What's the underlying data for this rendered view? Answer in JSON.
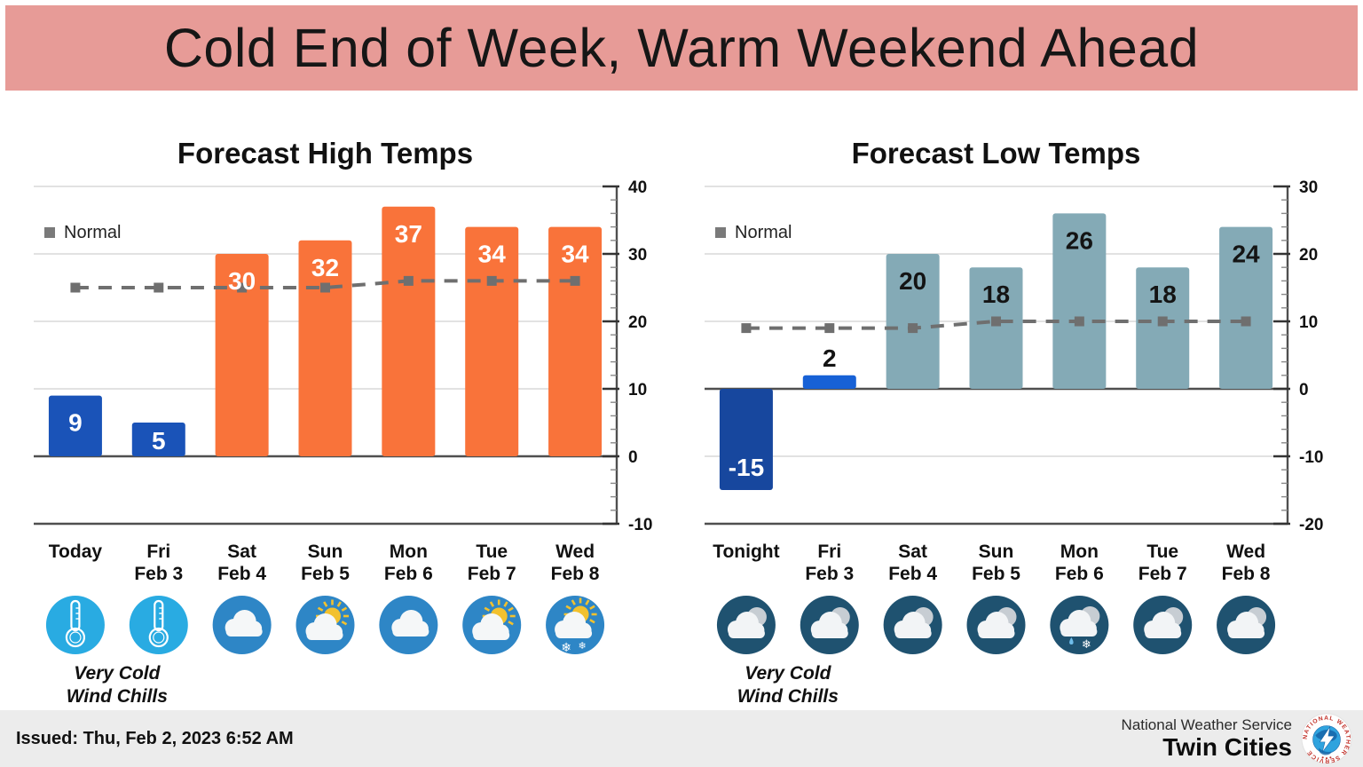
{
  "banner": {
    "title": "Cold End of Week, Warm Weekend Ahead",
    "bg_color": "#E79B97",
    "text_color": "#161616"
  },
  "colors": {
    "page_bg": "#FFFFFF",
    "grid": "#D9D9D9",
    "axis": "#4F4F4F",
    "normal_line": "#6F6F6F",
    "legend_marker": "#7A7A7A",
    "footer_bg": "#ECECEC",
    "tick_label": "#111111"
  },
  "chart_data": [
    {
      "type": "bar",
      "title": "Forecast High Temps",
      "categories": [
        "Today",
        "Fri Feb 3",
        "Sat Feb 4",
        "Sun Feb 5",
        "Mon Feb 6",
        "Tue Feb 7",
        "Wed Feb 8"
      ],
      "category_lines": [
        [
          "Today"
        ],
        [
          "Fri",
          "Feb 3"
        ],
        [
          "Sat",
          "Feb 4"
        ],
        [
          "Sun",
          "Feb 5"
        ],
        [
          "Mon",
          "Feb 6"
        ],
        [
          "Tue",
          "Feb 7"
        ],
        [
          "Wed",
          "Feb 8"
        ]
      ],
      "values": [
        9,
        5,
        30,
        32,
        37,
        34,
        34
      ],
      "series": [
        {
          "name": "High",
          "values": [
            9,
            5,
            30,
            32,
            37,
            34,
            34
          ]
        },
        {
          "name": "Normal",
          "values": [
            25,
            25,
            25,
            25,
            26,
            26,
            26
          ]
        }
      ],
      "normal": [
        25,
        25,
        25,
        25,
        26,
        26,
        26
      ],
      "legend": "Normal",
      "legend_position": "top-left",
      "ylim": [
        -10,
        40
      ],
      "ytick_major": 10,
      "ytick_minor": 2,
      "ytick_labels": [
        "40",
        "30",
        "20",
        "10",
        "0",
        "-10"
      ],
      "axis_side": "right",
      "grid": true,
      "bar_colors": [
        "#1A53B8",
        "#1A53B8",
        "#F9733A",
        "#F9733A",
        "#F9733A",
        "#F9733A",
        "#F9733A"
      ],
      "value_label_colors": [
        "#FFFFFF",
        "#FFFFFF",
        "#FFFFFF",
        "#FFFFFF",
        "#FFFFFF",
        "#FFFFFF",
        "#FFFFFF"
      ],
      "value_label_pos": [
        "in",
        "in",
        "in",
        "in",
        "in",
        "in",
        "in"
      ],
      "icons": [
        "thermometer-icon",
        "thermometer-icon",
        "cloudy-day-icon",
        "partly-sunny-icon",
        "cloudy-day-icon",
        "partly-sunny-icon",
        "partly-sunny-snow-icon"
      ],
      "note_lines": [
        "Very Cold",
        "Wind Chills"
      ]
    },
    {
      "type": "bar",
      "title": "Forecast Low Temps",
      "categories": [
        "Tonight",
        "Fri Feb 3",
        "Sat Feb 4",
        "Sun Feb 5",
        "Mon Feb 6",
        "Tue Feb 7",
        "Wed Feb 8"
      ],
      "category_lines": [
        [
          "Tonight"
        ],
        [
          "Fri",
          "Feb 3"
        ],
        [
          "Sat",
          "Feb 4"
        ],
        [
          "Sun",
          "Feb 5"
        ],
        [
          "Mon",
          "Feb 6"
        ],
        [
          "Tue",
          "Feb 7"
        ],
        [
          "Wed",
          "Feb 8"
        ]
      ],
      "values": [
        -15,
        2,
        20,
        18,
        26,
        18,
        24
      ],
      "series": [
        {
          "name": "Low",
          "values": [
            -15,
            2,
            20,
            18,
            26,
            18,
            24
          ]
        },
        {
          "name": "Normal",
          "values": [
            9,
            9,
            9,
            10,
            10,
            10,
            10
          ]
        }
      ],
      "normal": [
        9,
        9,
        9,
        10,
        10,
        10,
        10
      ],
      "legend": "Normal",
      "legend_position": "top-left",
      "ylim": [
        -20,
        30
      ],
      "ytick_major": 10,
      "ytick_minor": 2,
      "ytick_labels": [
        "30",
        "20",
        "10",
        "0",
        "-10",
        "-20"
      ],
      "axis_side": "right",
      "grid": true,
      "bar_colors": [
        "#17479E",
        "#1761D6",
        "#84AAB6",
        "#84AAB6",
        "#84AAB6",
        "#84AAB6",
        "#84AAB6"
      ],
      "value_label_colors": [
        "#FFFFFF",
        "#141414",
        "#141414",
        "#141414",
        "#141414",
        "#141414",
        "#141414"
      ],
      "value_label_pos": [
        "end",
        "above",
        "in",
        "in",
        "in",
        "in",
        "in"
      ],
      "icons": [
        "cloudy-night-icon",
        "cloudy-night-icon",
        "cloudy-night-icon",
        "cloudy-night-icon",
        "cloudy-night-mix-icon",
        "cloudy-night-icon",
        "cloudy-night-icon"
      ],
      "note_lines": [
        "Very Cold",
        "Wind Chills"
      ]
    }
  ],
  "footer": {
    "issued": "Issued: Thu, Feb 2, 2023 6:52 AM",
    "org": "National Weather Service",
    "office": "Twin Cities",
    "logo_ring_text": "NATIONAL WEATHER SERVICE"
  }
}
